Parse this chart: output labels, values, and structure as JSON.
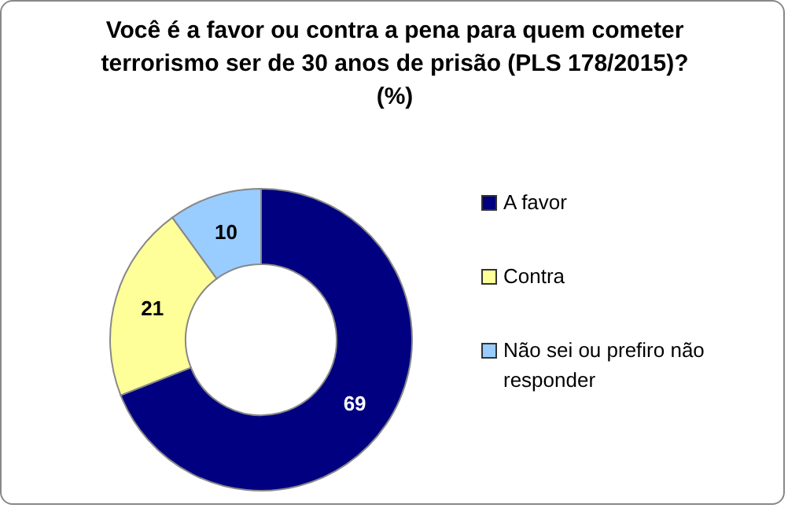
{
  "chart_data": {
    "type": "donut",
    "title": "Você é a favor ou contra a pena para quem cometer terrorismo ser de 30 anos de prisão (PLS 178/2015)? (%)",
    "categories": [
      "A favor",
      "Contra",
      "Não sei ou prefiro não responder"
    ],
    "values": [
      69,
      21,
      10
    ],
    "colors": [
      "#000080",
      "#ffff99",
      "#99ccff"
    ],
    "data_labels": true,
    "legend": "right"
  }
}
